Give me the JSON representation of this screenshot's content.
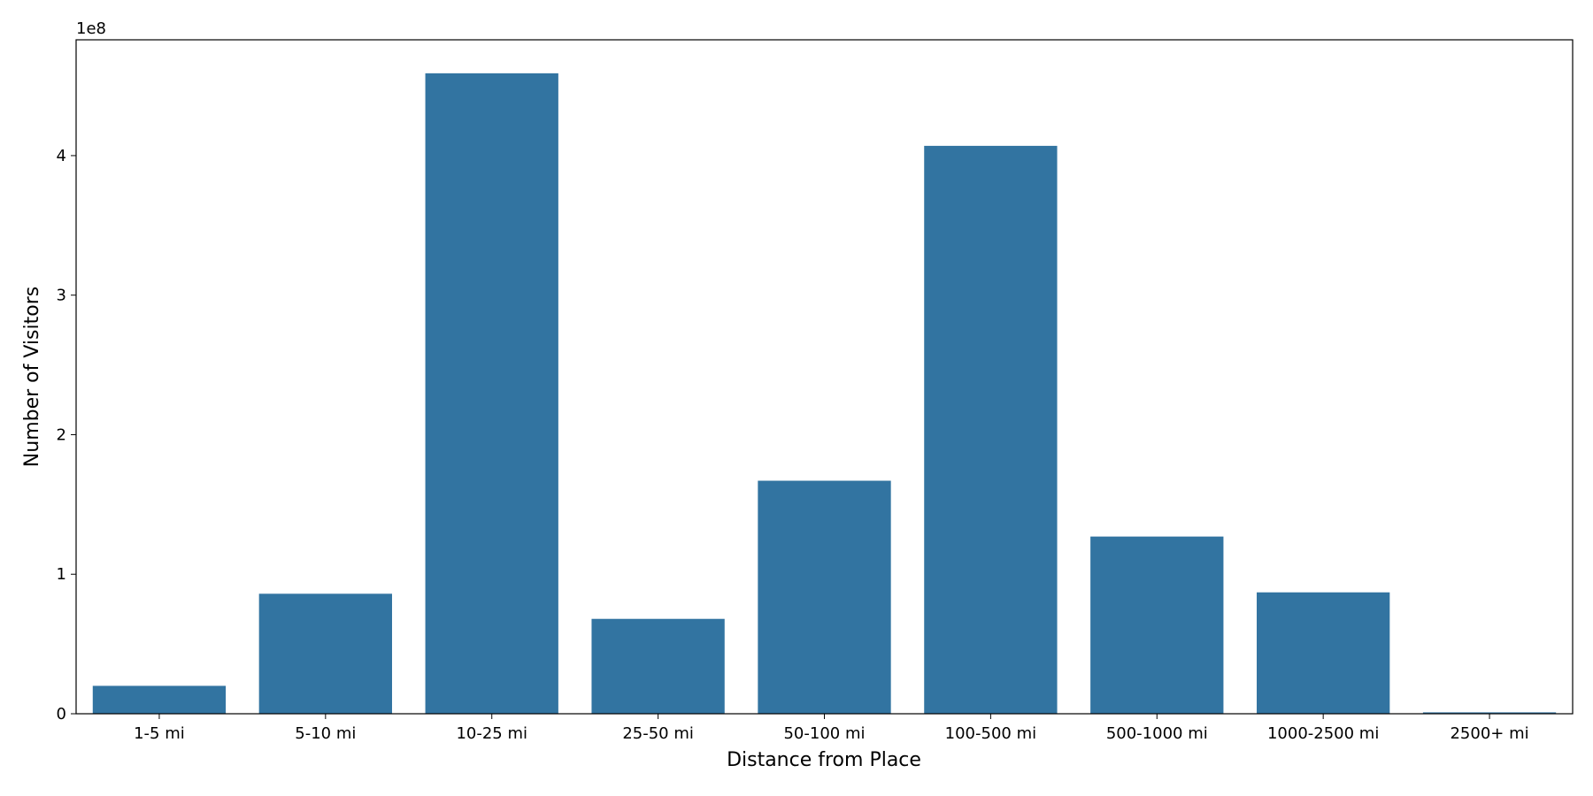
{
  "chart_data": {
    "type": "bar",
    "offset_text": "1e8",
    "x_label": "Distance from Place",
    "y_label": "Number of Visitors",
    "categories": [
      "1-5 mi",
      "5-10 mi",
      "10-25 mi",
      "25-50 mi",
      "50-100 mi",
      "100-500 mi",
      "500-1000 mi",
      "1000-2500 mi",
      "2500+ mi"
    ],
    "values": [
      0.2,
      0.86,
      4.59,
      0.68,
      1.67,
      4.07,
      1.27,
      0.87,
      0.01
    ],
    "color": "#3274a1",
    "ylim": [
      0,
      4.83
    ],
    "yticks": [
      0,
      1,
      2,
      3,
      4
    ],
    "grid": false
  }
}
